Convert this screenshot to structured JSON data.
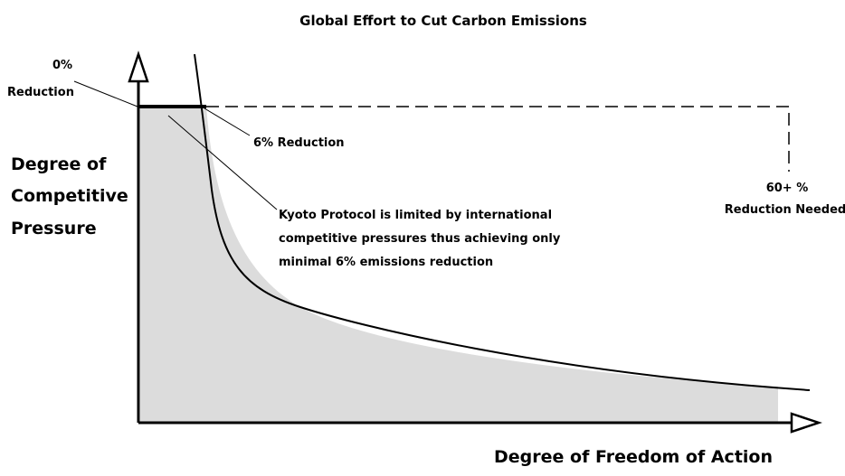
{
  "title": "Global Effort to Cut Carbon Emissions",
  "y_axis_label": [
    "Degree of",
    "Competitive",
    "Pressure"
  ],
  "x_axis_label": "Degree of Freedom of Action",
  "annotations": {
    "zero": [
      "0%",
      "Reduction"
    ],
    "six": "6% Reduction",
    "sixty": [
      "60+ %",
      "Reduction Needed"
    ],
    "kyoto": [
      "Kyoto Protocol is limited by international",
      "competitive pressures thus achieving only",
      "minimal 6% emissions reduction"
    ]
  }
}
